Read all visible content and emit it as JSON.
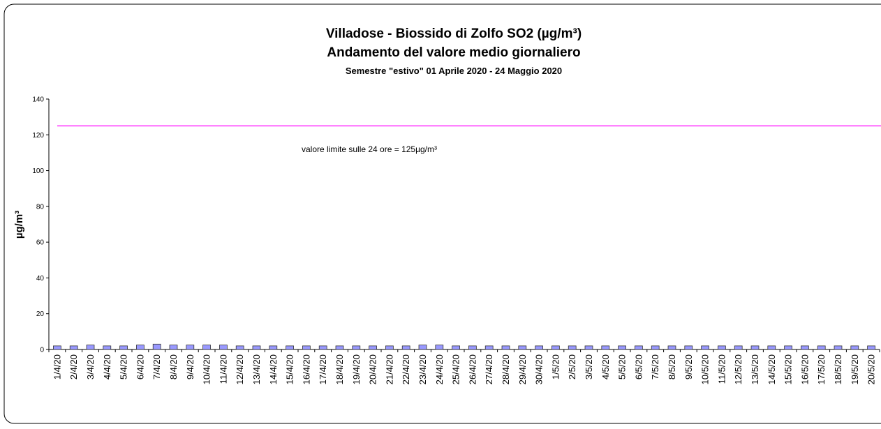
{
  "chart_data": {
    "type": "bar",
    "title": "Villadose - Biossido di Zolfo SO2 (µg/m³)",
    "subtitle": "Andamento del valore medio giornaliero",
    "subtitle2": "Semestre \"estivo\" 01 Aprile 2020 - 24 Maggio 2020",
    "y_label": "µg/m³",
    "categories": [
      "1/4/20",
      "2/4/20",
      "3/4/20",
      "4/4/20",
      "5/4/20",
      "6/4/20",
      "7/4/20",
      "8/4/20",
      "9/4/20",
      "10/4/20",
      "11/4/20",
      "12/4/20",
      "13/4/20",
      "14/4/20",
      "15/4/20",
      "16/4/20",
      "17/4/20",
      "18/4/20",
      "19/4/20",
      "20/4/20",
      "21/4/20",
      "22/4/20",
      "23/4/20",
      "24/4/20",
      "25/4/20",
      "26/4/20",
      "27/4/20",
      "28/4/20",
      "29/4/20",
      "30/4/20",
      "1/5/20",
      "2/5/20",
      "3/5/20",
      "4/5/20",
      "5/5/20",
      "6/5/20",
      "7/5/20",
      "8/5/20",
      "9/5/20",
      "10/5/20",
      "11/5/20",
      "12/5/20",
      "13/5/20",
      "14/5/20",
      "15/5/20",
      "16/5/20",
      "17/5/20",
      "18/5/20",
      "19/5/20",
      "20/5/20"
    ],
    "values": [
      2,
      2,
      2.5,
      2,
      2,
      2.5,
      3,
      2.5,
      2.5,
      2.5,
      2.5,
      2,
      2,
      2,
      2,
      2,
      2,
      2,
      2,
      2,
      2,
      2,
      2.5,
      2.5,
      2,
      2,
      2,
      2,
      2,
      2,
      2,
      2,
      2,
      2,
      2,
      2,
      2,
      2,
      2,
      2,
      2,
      2,
      2,
      2,
      2,
      2,
      2,
      2,
      2,
      2
    ],
    "color": "#9999ff",
    "ylim": [
      0,
      140
    ],
    "yticks": [
      0,
      20,
      40,
      60,
      80,
      100,
      120,
      140
    ],
    "limit_line": {
      "value": 125,
      "label": "valore limite sulle 24 ore = 125µg/m³",
      "color": "#ff00ff"
    }
  }
}
